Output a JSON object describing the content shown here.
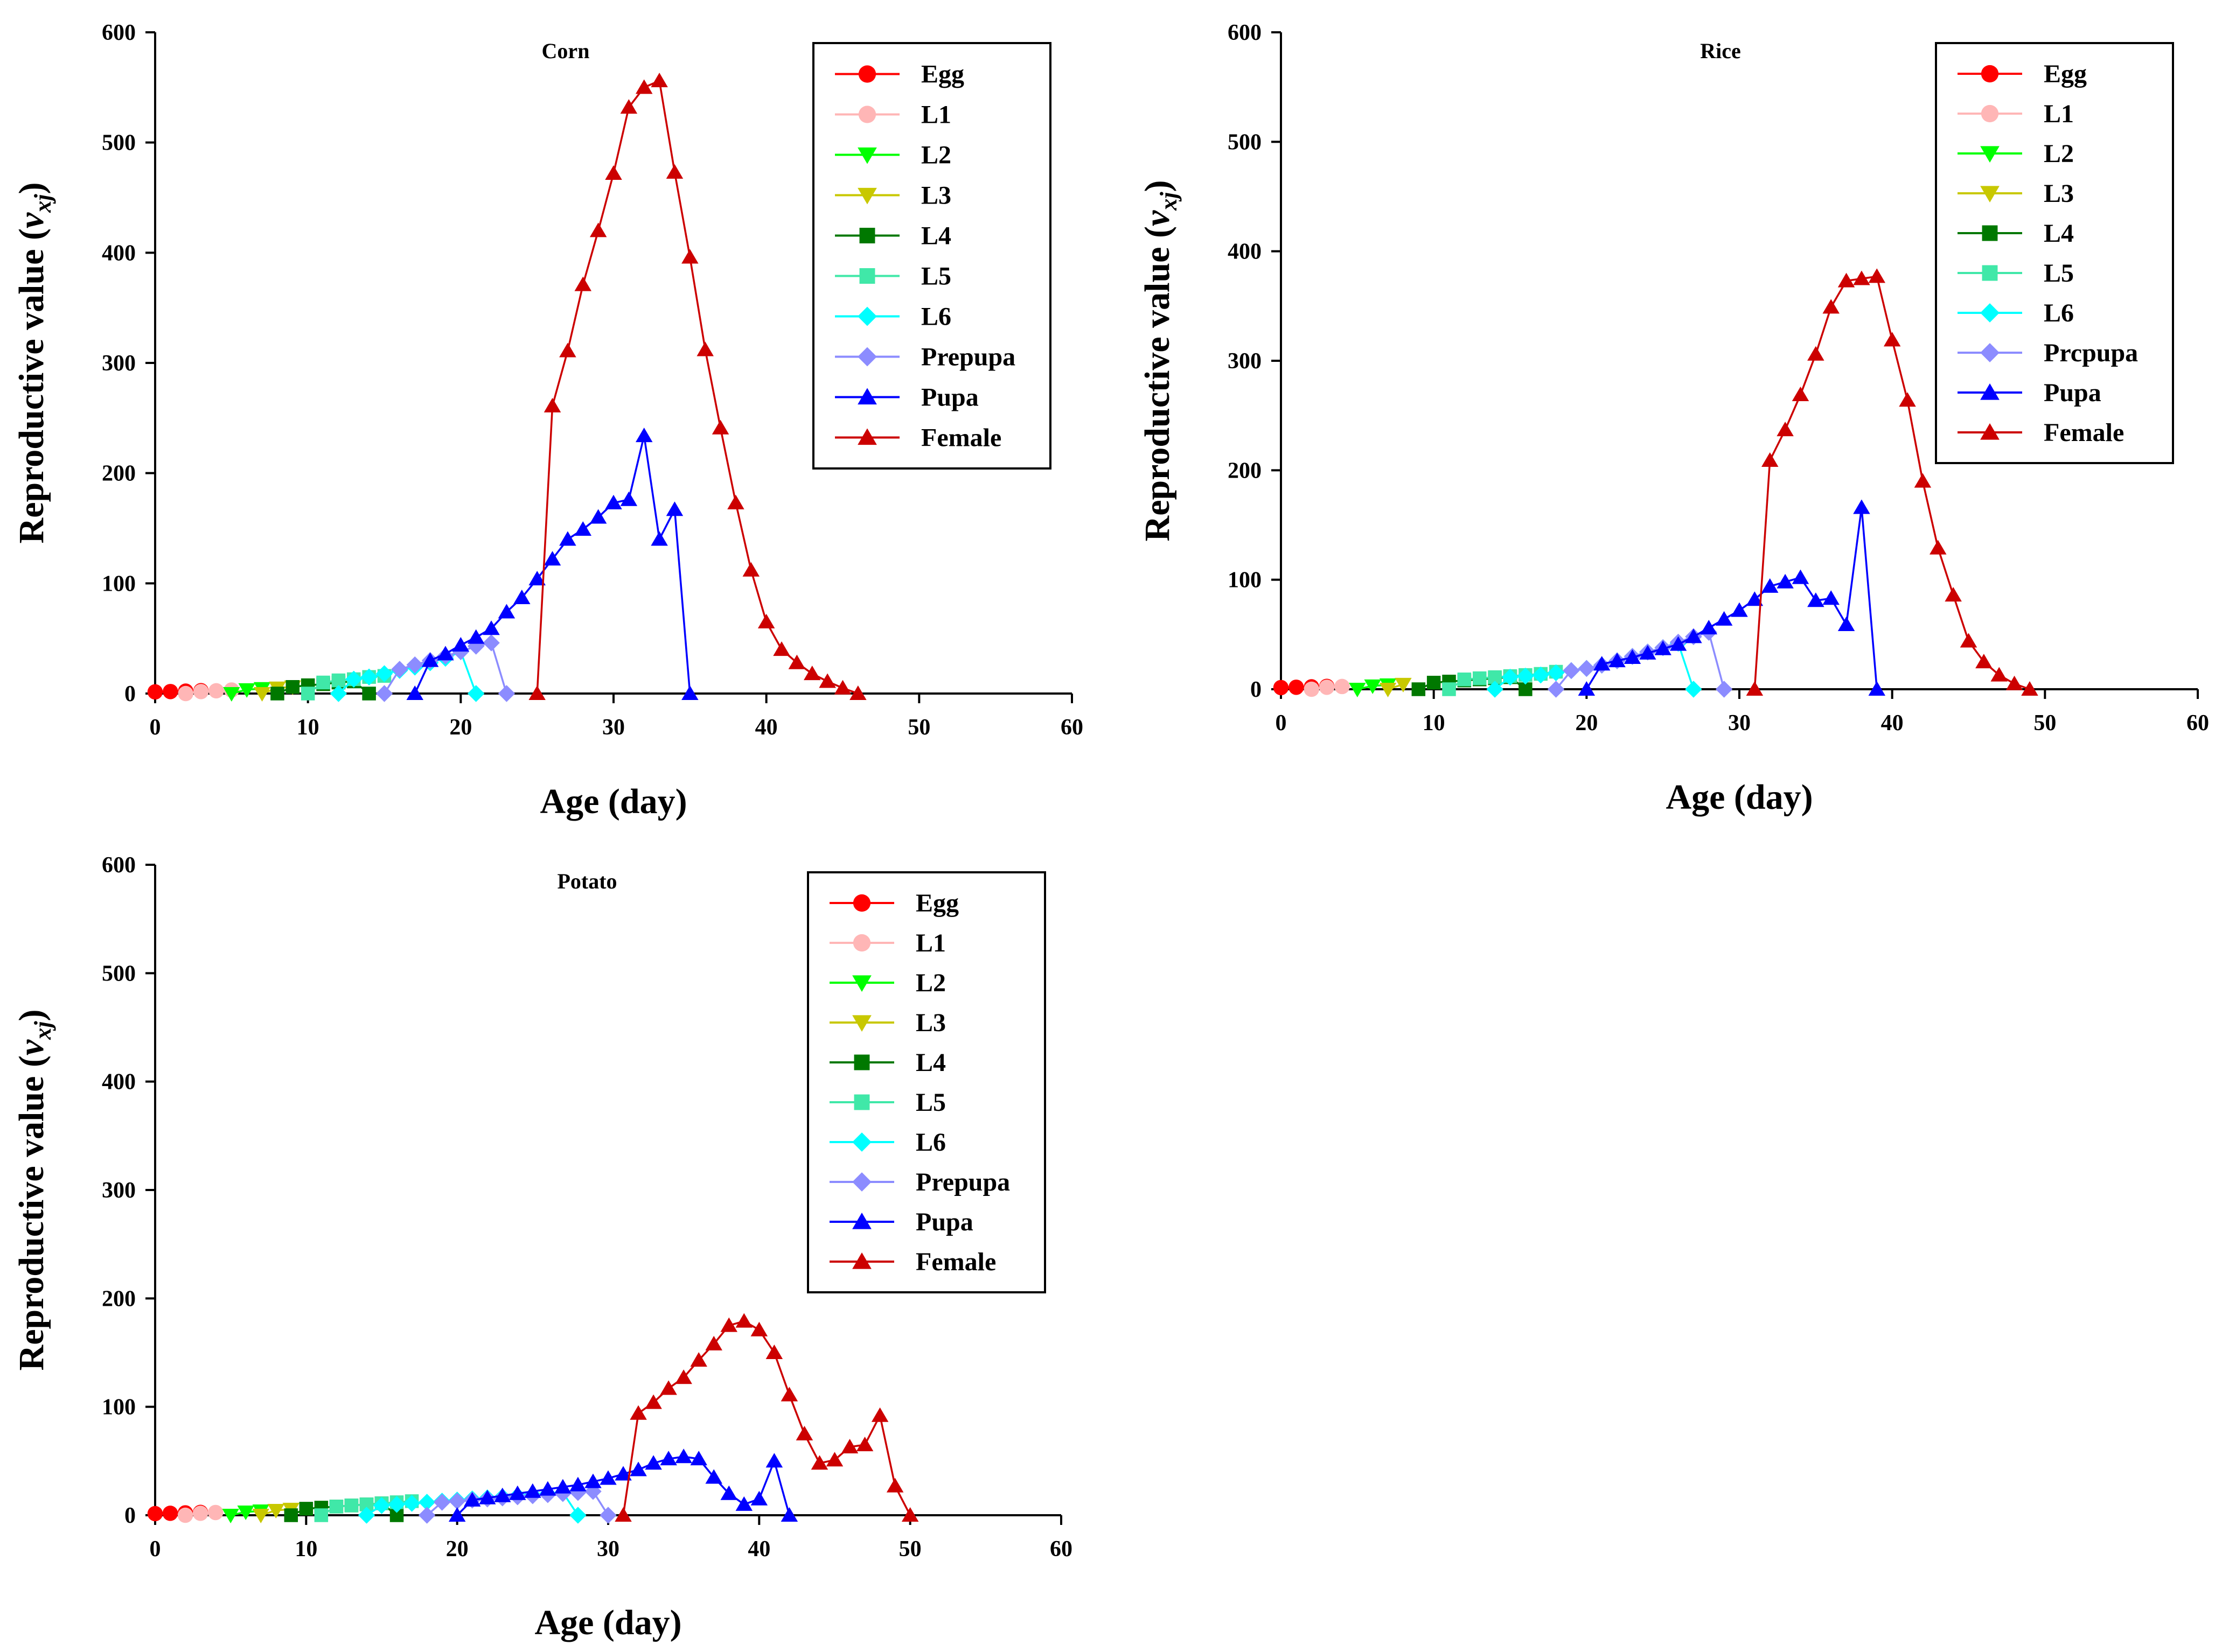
{
  "figure": {
    "y_axis_label": "Reproductive value",
    "y_axis_var": "v",
    "y_axis_sub": "xj",
    "x_axis_label": "Age (day)"
  },
  "legend_style": {
    "Egg": {
      "color": "#ff0000",
      "marker": "circle"
    },
    "L1": {
      "color": "#ffb6b6",
      "marker": "circle"
    },
    "L2": {
      "color": "#00ff00",
      "marker": "triangle-down"
    },
    "L3": {
      "color": "#c8c800",
      "marker": "triangle-down"
    },
    "L4": {
      "color": "#007800",
      "marker": "square"
    },
    "L5": {
      "color": "#40e8a8",
      "marker": "square"
    },
    "L6": {
      "color": "#00ffff",
      "marker": "diamond"
    },
    "Prepupa": {
      "color": "#8c8cff",
      "marker": "diamond"
    },
    "Pupa": {
      "color": "#0000ff",
      "marker": "triangle-up"
    },
    "Female": {
      "color": "#cc0000",
      "marker": "triangle-up"
    }
  },
  "chart_data": [
    {
      "type": "line",
      "title": "Corn",
      "xlabel": "Age (day)",
      "ylabel": "Reproductive value (v_xj)",
      "xlim": [
        0,
        60
      ],
      "ylim": [
        0,
        600
      ],
      "xticks": [
        "0",
        "10",
        "20",
        "30",
        "40",
        "50",
        "60"
      ],
      "yticks": [
        "0",
        "100",
        "200",
        "300",
        "400",
        "500",
        "600"
      ],
      "legend_position": "top-right",
      "legend": [
        "Egg",
        "L1",
        "L2",
        "L3",
        "L4",
        "L5",
        "L6",
        "Prepupa",
        "Pupa",
        "Female"
      ],
      "series": [
        {
          "name": "Egg",
          "x": [
            0,
            1,
            2,
            3
          ],
          "y": [
            1.5,
            1.8,
            2.2,
            2.6
          ]
        },
        {
          "name": "L1",
          "x": [
            2,
            3,
            4,
            5
          ],
          "y": [
            0,
            1.8,
            2.5,
            3.2
          ]
        },
        {
          "name": "L2",
          "x": [
            5,
            6,
            7
          ],
          "y": [
            0,
            3.5,
            4.5
          ]
        },
        {
          "name": "L3",
          "x": [
            7,
            8,
            9
          ],
          "y": [
            0,
            5,
            6
          ]
        },
        {
          "name": "L4",
          "x": [
            8,
            9,
            10,
            11,
            12,
            13,
            14
          ],
          "y": [
            0,
            6,
            7.5,
            8.5,
            10,
            11,
            0
          ]
        },
        {
          "name": "L5",
          "x": [
            10,
            11,
            12,
            13,
            14,
            15
          ],
          "y": [
            0,
            10,
            12,
            13,
            15,
            16
          ]
        },
        {
          "name": "L6",
          "x": [
            12,
            13,
            14,
            15,
            16,
            17,
            18,
            19,
            20,
            21
          ],
          "y": [
            0,
            13,
            15,
            18,
            21,
            24,
            28,
            32,
            38,
            0
          ]
        },
        {
          "name": "Prepupa",
          "x": [
            15,
            16,
            17,
            18,
            19,
            20,
            21,
            22,
            23
          ],
          "y": [
            0,
            22,
            26,
            30,
            34,
            38,
            43,
            46,
            0
          ]
        },
        {
          "name": "Pupa",
          "x": [
            17,
            18,
            19,
            20,
            21,
            22,
            23,
            24,
            25,
            26,
            27,
            28,
            29,
            30,
            31,
            32,
            33,
            34,
            35
          ],
          "y": [
            0,
            30,
            36,
            44,
            51,
            59,
            74,
            87,
            104,
            122,
            140,
            149,
            160,
            173,
            176,
            234,
            140,
            167,
            0
          ]
        },
        {
          "name": "Female",
          "x": [
            25,
            26,
            27,
            28,
            29,
            30,
            31,
            32,
            33,
            34,
            35,
            36,
            37,
            38,
            39,
            40,
            41,
            42,
            43,
            44,
            45,
            46
          ],
          "y": [
            0,
            261,
            311,
            371,
            420,
            472,
            532,
            550,
            556,
            473,
            396,
            312,
            241,
            173,
            112,
            65,
            40,
            28,
            18,
            11,
            5,
            0
          ]
        }
      ]
    },
    {
      "type": "line",
      "title": "Rice",
      "xlabel": "Age (day)",
      "ylabel": "Reproductive value (v_xj)",
      "xlim": [
        0,
        60
      ],
      "ylim": [
        0,
        600
      ],
      "xticks": [
        "0",
        "10",
        "20",
        "30",
        "40",
        "50",
        "60"
      ],
      "yticks": [
        "0",
        "100",
        "200",
        "300",
        "400",
        "500",
        "600"
      ],
      "legend_position": "top-right",
      "legend": [
        "Egg",
        "L1",
        "L2",
        "L3",
        "L4",
        "L5",
        "L6",
        "Prcpupa",
        "Pupa",
        "Female"
      ],
      "series": [
        {
          "name": "Egg",
          "x": [
            0,
            1,
            2,
            3
          ],
          "y": [
            1.5,
            1.8,
            2.2,
            2.6
          ]
        },
        {
          "name": "L1",
          "x": [
            2,
            3,
            4
          ],
          "y": [
            0,
            1.8,
            2.5
          ]
        },
        {
          "name": "L2",
          "x": [
            5,
            6,
            7
          ],
          "y": [
            0,
            3,
            4
          ]
        },
        {
          "name": "L3",
          "x": [
            7,
            8
          ],
          "y": [
            0,
            4.5
          ]
        },
        {
          "name": "L4",
          "x": [
            9,
            10,
            11,
            12,
            13,
            14,
            15,
            16
          ],
          "y": [
            0,
            6,
            7,
            8,
            9,
            10,
            11,
            0
          ]
        },
        {
          "name": "L5",
          "x": [
            11,
            12,
            13,
            14,
            15,
            16,
            17,
            18
          ],
          "y": [
            0,
            9,
            10,
            11,
            12,
            13,
            14,
            16
          ]
        },
        {
          "name": "L6",
          "x": [
            14,
            15,
            16,
            17,
            18,
            19,
            20,
            21,
            22,
            23,
            24,
            25,
            26,
            27
          ],
          "y": [
            0,
            11,
            12,
            13,
            15,
            17,
            19,
            22,
            26,
            30,
            34,
            38,
            42,
            0
          ]
        },
        {
          "name": "Prcpupa",
          "x": [
            18,
            19,
            20,
            21,
            22,
            23,
            24,
            25,
            26,
            27,
            28,
            29
          ],
          "y": [
            0,
            17,
            19,
            22,
            26,
            30,
            34,
            38,
            43,
            48,
            52,
            0
          ]
        },
        {
          "name": "Pupa",
          "x": [
            20,
            21,
            22,
            23,
            24,
            25,
            26,
            27,
            28,
            29,
            30,
            31,
            32,
            33,
            34,
            35,
            36,
            37,
            38,
            39
          ],
          "y": [
            0,
            23,
            26,
            29,
            33,
            37,
            41,
            48,
            56,
            64,
            72,
            82,
            94,
            98,
            102,
            81,
            83,
            59,
            166,
            0
          ]
        },
        {
          "name": "Female",
          "x": [
            31,
            32,
            33,
            34,
            35,
            36,
            37,
            38,
            39,
            40,
            41,
            42,
            43,
            44,
            45,
            46,
            47,
            48,
            49
          ],
          "y": [
            0,
            209,
            237,
            269,
            306,
            349,
            373,
            375,
            377,
            319,
            264,
            190,
            129,
            86,
            44,
            25,
            13,
            5,
            0
          ]
        }
      ]
    },
    {
      "type": "line",
      "title": "Potato",
      "xlabel": "Age (day)",
      "ylabel": "Reproductive value (v_xj)",
      "xlim": [
        0,
        60
      ],
      "ylim": [
        0,
        600
      ],
      "xticks": [
        "0",
        "10",
        "20",
        "30",
        "40",
        "50",
        "60"
      ],
      "yticks": [
        "0",
        "100",
        "200",
        "300",
        "400",
        "500",
        "600"
      ],
      "legend_position": "top-right",
      "legend": [
        "Egg",
        "L1",
        "L2",
        "L3",
        "L4",
        "L5",
        "L6",
        "Prepupa",
        "Pupa",
        "Female"
      ],
      "series": [
        {
          "name": "Egg",
          "x": [
            0,
            1,
            2,
            3
          ],
          "y": [
            1.5,
            1.8,
            2.2,
            2.6
          ]
        },
        {
          "name": "L1",
          "x": [
            2,
            3,
            4
          ],
          "y": [
            0,
            1.8,
            2.5
          ]
        },
        {
          "name": "L2",
          "x": [
            5,
            6,
            7
          ],
          "y": [
            0,
            3,
            4
          ]
        },
        {
          "name": "L3",
          "x": [
            7,
            8,
            9
          ],
          "y": [
            0,
            4.5,
            5.5
          ]
        },
        {
          "name": "L4",
          "x": [
            9,
            10,
            11,
            12,
            13,
            14,
            15,
            16
          ],
          "y": [
            0,
            6,
            7,
            8,
            9,
            10,
            11,
            0
          ]
        },
        {
          "name": "L5",
          "x": [
            11,
            12,
            13,
            14,
            15,
            16,
            17
          ],
          "y": [
            0,
            8,
            9,
            10,
            11,
            12,
            13
          ]
        },
        {
          "name": "L6",
          "x": [
            14,
            15,
            16,
            17,
            18,
            19,
            20,
            21,
            22,
            23,
            24,
            25,
            26,
            27,
            28
          ],
          "y": [
            0,
            9,
            10,
            11,
            12,
            13,
            14,
            15,
            16,
            17,
            18,
            19,
            20,
            21,
            0
          ]
        },
        {
          "name": "Prepupa",
          "x": [
            18,
            19,
            20,
            21,
            22,
            23,
            24,
            25,
            26,
            27,
            28,
            29,
            30
          ],
          "y": [
            0,
            12,
            13,
            14,
            15,
            16,
            17,
            18,
            19,
            20,
            21,
            22,
            0
          ]
        },
        {
          "name": "Pupa",
          "x": [
            20,
            21,
            22,
            23,
            24,
            25,
            26,
            27,
            28,
            29,
            30,
            31,
            32,
            33,
            34,
            35,
            36,
            37,
            38,
            39,
            40,
            41,
            42
          ],
          "y": [
            0,
            14,
            16,
            18,
            20,
            22,
            24,
            26,
            28,
            31,
            34,
            38,
            42,
            48,
            52,
            54,
            52,
            35,
            20,
            10,
            15,
            50,
            0
          ]
        },
        {
          "name": "Female",
          "x": [
            31,
            32,
            33,
            34,
            35,
            36,
            37,
            38,
            39,
            40,
            41,
            42,
            43,
            44,
            45,
            46,
            47,
            48,
            49,
            50
          ],
          "y": [
            0,
            94,
            104,
            117,
            127,
            143,
            158,
            175,
            179,
            171,
            150,
            111,
            75,
            48,
            51,
            63,
            65,
            92,
            27,
            0
          ]
        }
      ]
    }
  ]
}
